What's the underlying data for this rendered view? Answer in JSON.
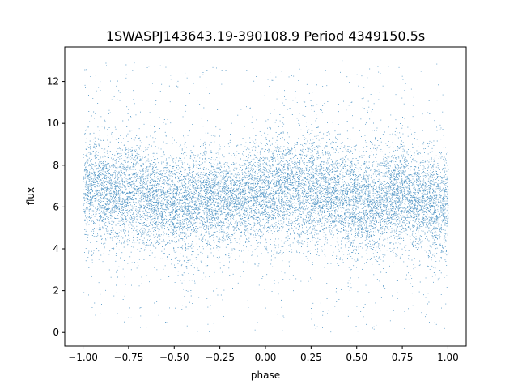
{
  "chart_data": {
    "type": "scatter",
    "title": "1SWASPJ143643.19-390108.9 Period 4349150.5s",
    "xlabel": "phase",
    "ylabel": "flux",
    "xlim": [
      -1.1,
      1.1
    ],
    "ylim": [
      -0.65,
      13.65
    ],
    "grid": false,
    "legend": "none",
    "series_color": "#1f77b4",
    "x_ticks": [
      -1.0,
      -0.75,
      -0.5,
      -0.25,
      0.0,
      0.25,
      0.5,
      0.75,
      1.0
    ],
    "x_tick_labels": [
      "−1.00",
      "−0.75",
      "−0.50",
      "−0.25",
      "0.00",
      "0.25",
      "0.50",
      "0.75",
      "1.00"
    ],
    "y_ticks": [
      0,
      2,
      4,
      6,
      8,
      10,
      12
    ],
    "y_tick_labels": [
      "0",
      "2",
      "4",
      "6",
      "8",
      "10",
      "12"
    ],
    "density_profile": {
      "description_of_values": "approximate median flux and spread per phase bin read from the plot",
      "phase": [
        -1.0,
        -0.95,
        -0.9,
        -0.85,
        -0.8,
        -0.75,
        -0.7,
        -0.65,
        -0.6,
        -0.55,
        -0.5,
        -0.45,
        -0.4,
        -0.35,
        -0.3,
        -0.25,
        -0.2,
        -0.15,
        -0.1,
        -0.05,
        0.0,
        0.05,
        0.1,
        0.15,
        0.2,
        0.25,
        0.3,
        0.35,
        0.4,
        0.45,
        0.5,
        0.55,
        0.6,
        0.65,
        0.7,
        0.75,
        0.8,
        0.85,
        0.9,
        0.95,
        1.0
      ],
      "median_flux": [
        6.8,
        7.0,
        6.9,
        6.5,
        6.6,
        6.8,
        6.7,
        6.5,
        6.3,
        6.2,
        6.1,
        6.0,
        6.2,
        6.4,
        6.3,
        6.2,
        6.3,
        6.4,
        6.5,
        6.7,
        6.6,
        6.8,
        6.9,
        6.7,
        6.8,
        7.0,
        6.9,
        6.7,
        6.5,
        6.3,
        6.1,
        6.2,
        6.0,
        6.3,
        6.5,
        6.6,
        6.4,
        6.3,
        6.2,
        6.1,
        6.2
      ],
      "spread": [
        1.3,
        1.6,
        1.5,
        1.2,
        1.4,
        1.6,
        1.5,
        1.4,
        1.3,
        1.4,
        1.5,
        1.6,
        1.4,
        1.3,
        1.3,
        1.3,
        1.2,
        1.2,
        1.3,
        1.4,
        1.4,
        1.5,
        1.5,
        1.3,
        1.5,
        1.6,
        1.5,
        1.4,
        1.4,
        1.5,
        1.5,
        1.4,
        1.5,
        1.4,
        1.4,
        1.4,
        1.4,
        1.3,
        1.4,
        1.5,
        1.4
      ]
    },
    "flux_range": [
      0.0,
      13.0
    ]
  }
}
